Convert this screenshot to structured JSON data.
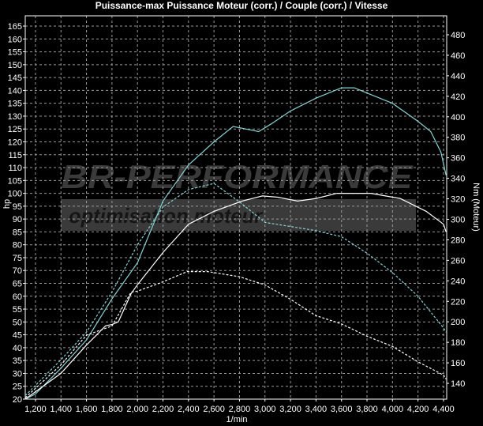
{
  "chart_data": {
    "type": "line",
    "title": "Puissance-max Puissance Moteur (corr.) / Couple (corr.) / Vitesse",
    "xlabel": "1/min",
    "ylabel": "hp",
    "y2label": "Nm (Moteur)",
    "xlim": [
      1120,
      4425
    ],
    "ylim": [
      20,
      169
    ],
    "y2lim": [
      124.6,
      498.5
    ],
    "xticks": [
      1200,
      1400,
      1600,
      1800,
      2000,
      2200,
      2400,
      2600,
      2800,
      3000,
      3200,
      3400,
      3600,
      3800,
      4000,
      4200,
      4400
    ],
    "xtick_labels": [
      "1,200",
      "1,400",
      "1,600",
      "1,800",
      "2,000",
      "2,200",
      "2,400",
      "2,600",
      "2,800",
      "3,000",
      "3,200",
      "3,400",
      "3,600",
      "3,800",
      "4,000",
      "4,200",
      "4,400"
    ],
    "yticks": [
      20,
      25,
      30,
      35,
      40,
      45,
      50,
      55,
      60,
      65,
      70,
      75,
      80,
      85,
      90,
      95,
      100,
      105,
      110,
      115,
      120,
      125,
      130,
      135,
      140,
      145,
      150,
      155,
      160,
      165
    ],
    "y2ticks": [
      140,
      160,
      180,
      200,
      220,
      240,
      260,
      280,
      300,
      320,
      340,
      360,
      380,
      400,
      420,
      440,
      460,
      480
    ],
    "grid": true,
    "series": [
      {
        "axis": "left",
        "color": "#7fd6d6",
        "dash": false,
        "x": [
          1120,
          1200,
          1400,
          1600,
          1800,
          2000,
          2200,
          2400,
          2600,
          2750,
          2850,
          2950,
          3050,
          3200,
          3400,
          3600,
          3700,
          3800,
          4000,
          4200,
          4300,
          4380,
          4420
        ],
        "y": [
          20,
          22,
          32,
          43,
          59,
          73,
          97,
          111,
          120,
          126,
          125,
          124,
          127,
          132,
          137,
          141,
          141,
          139,
          135,
          128,
          124,
          116,
          107
        ]
      },
      {
        "axis": "left",
        "color": "#ffffff",
        "dash": false,
        "x": [
          1120,
          1400,
          1600,
          1700,
          1750,
          1800,
          1850,
          1950,
          2000,
          2200,
          2400,
          2600,
          2820,
          2980,
          3100,
          3255,
          3400,
          3565,
          3830,
          4060,
          4265,
          4400,
          4420
        ],
        "y": [
          20,
          30,
          41,
          46,
          48.5,
          49,
          50,
          61,
          64.5,
          77,
          88,
          93,
          97,
          99,
          98.5,
          97,
          98,
          100,
          100,
          98,
          93,
          88,
          85
        ]
      },
      {
        "axis": "right",
        "color": "#7fd6d6",
        "dash": true,
        "x": [
          1120,
          1400,
          1600,
          1800,
          2000,
          2200,
          2400,
          2600,
          2800,
          3000,
          3200,
          3400,
          3600,
          3800,
          4000,
          4200,
          4400,
          4420
        ],
        "y": [
          128,
          163,
          190,
          229,
          275,
          312,
          329,
          335,
          317,
          297,
          293,
          289,
          283,
          267,
          248,
          225,
          194,
          190
        ]
      },
      {
        "axis": "right",
        "color": "#ffffff",
        "dash": true,
        "x": [
          1120,
          1400,
          1600,
          1800,
          1950,
          2000,
          2180,
          2390,
          2550,
          2800,
          3000,
          3200,
          3400,
          3600,
          3800,
          4000,
          4200,
          4400,
          4420
        ],
        "y": [
          126,
          158,
          187,
          196,
          229,
          230,
          238,
          249,
          249,
          244,
          236,
          222,
          206,
          198,
          186,
          176,
          161,
          148,
          144
        ]
      }
    ]
  },
  "watermark": {
    "brand": "BR-PERFORMANCE",
    "tagline": "optimisation moteur"
  }
}
